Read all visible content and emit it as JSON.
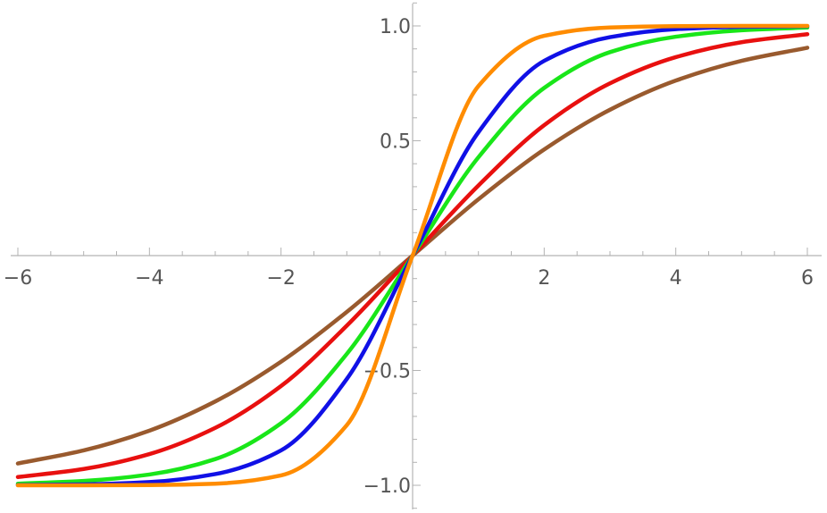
{
  "chart_data": {
    "type": "line",
    "title": "",
    "xlabel": "",
    "ylabel": "",
    "xlim": [
      -6,
      6
    ],
    "ylim": [
      -1.1,
      1.1
    ],
    "x_ticks": [
      -6,
      -4,
      -2,
      2,
      4,
      6
    ],
    "x_tick_labels": [
      "−6",
      "−4",
      "−2",
      "2",
      "4",
      "6"
    ],
    "y_ticks": [
      1.0,
      0.5,
      -0.5,
      -1.0
    ],
    "y_tick_labels": [
      "1.0",
      "0.5",
      "−0.5",
      "−1.0"
    ],
    "grid": false,
    "series": [
      {
        "color": "#995a2e",
        "x": [
          -6,
          -5,
          -4,
          -3,
          -2,
          -1,
          0,
          1,
          2,
          3,
          4,
          5,
          6
        ],
        "y": [
          -0.905,
          -0.848,
          -0.762,
          -0.635,
          -0.462,
          -0.245,
          0,
          0.245,
          0.462,
          0.635,
          0.762,
          0.848,
          0.905
        ]
      },
      {
        "color": "#e8100f",
        "x": [
          -6,
          -5,
          -4,
          -3,
          -2,
          -1,
          0,
          1,
          2,
          3,
          4,
          5,
          6
        ],
        "y": [
          -0.964,
          -0.929,
          -0.864,
          -0.75,
          -0.568,
          -0.305,
          0,
          0.305,
          0.568,
          0.75,
          0.864,
          0.929,
          0.964
        ]
      },
      {
        "color": "#19e619",
        "x": [
          -6,
          -5,
          -4,
          -3,
          -2,
          -1,
          0,
          1,
          2,
          3,
          4,
          5,
          6
        ],
        "y": [
          -0.993,
          -0.981,
          -0.953,
          -0.886,
          -0.73,
          -0.428,
          0,
          0.428,
          0.73,
          0.886,
          0.953,
          0.981,
          0.993
        ]
      },
      {
        "color": "#1010e6",
        "x": [
          -6,
          -5,
          -4,
          -3,
          -2,
          -1,
          0,
          1,
          2,
          3,
          4,
          5,
          6
        ],
        "y": [
          -0.999,
          -0.996,
          -0.986,
          -0.951,
          -0.848,
          -0.537,
          0,
          0.537,
          0.848,
          0.951,
          0.986,
          0.996,
          0.999
        ]
      },
      {
        "color": "#ff8c00",
        "x": [
          -6,
          -5,
          -4,
          -3,
          -2,
          -1,
          0,
          1,
          2,
          3,
          4,
          5,
          6
        ],
        "y": [
          -1.0,
          -1.0,
          -0.999,
          -0.993,
          -0.957,
          -0.738,
          0,
          0.738,
          0.957,
          0.993,
          0.999,
          1.0,
          1.0
        ]
      }
    ]
  }
}
